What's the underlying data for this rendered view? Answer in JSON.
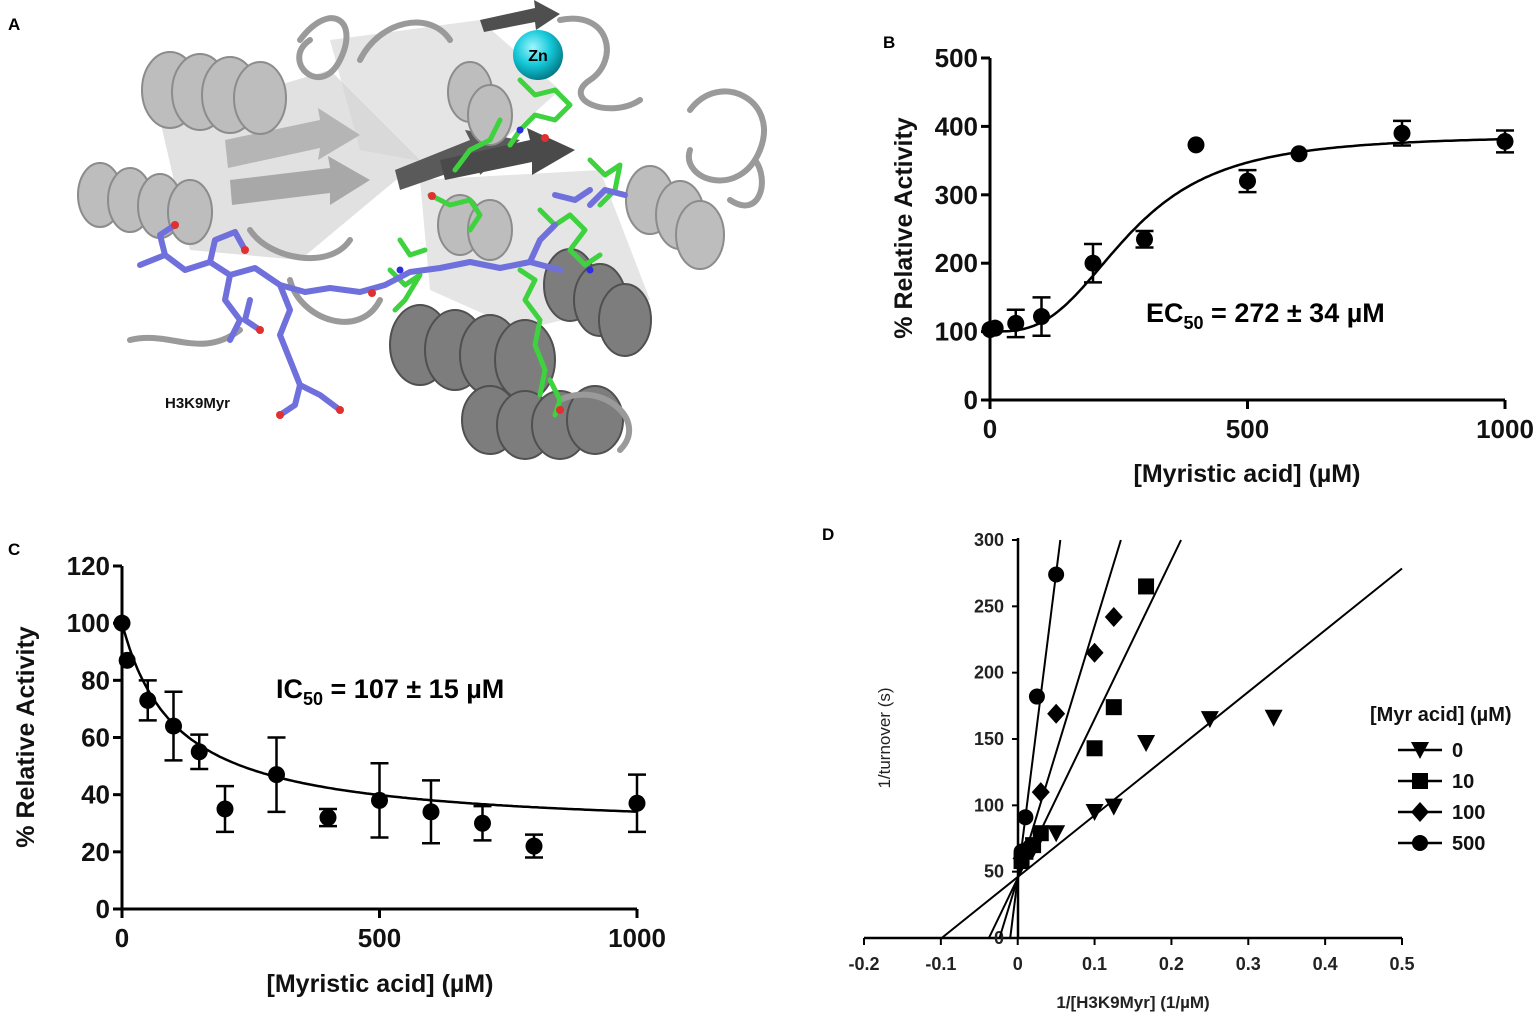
{
  "panels": {
    "A": {
      "letter": "A",
      "zn_label": "Zn",
      "peptide_label": "H3K9Myr"
    },
    "B": {
      "letter": "B"
    },
    "C": {
      "letter": "C"
    },
    "D": {
      "letter": "D"
    }
  },
  "chart_data": [
    {
      "panel": "B",
      "type": "scatter",
      "title": "",
      "xlabel": "[Myristic acid] (µM)",
      "ylabel": "% Relative Activity",
      "xlim": [
        0,
        1000
      ],
      "ylim": [
        0,
        500
      ],
      "xticks": [
        0,
        500,
        1000
      ],
      "yticks": [
        0,
        100,
        200,
        300,
        400,
        500
      ],
      "annotation": {
        "main": "EC",
        "sub": "50",
        "rest": " = 272 ± 34 µM"
      },
      "series": [
        {
          "x": [
            0,
            10,
            50,
            100,
            200,
            300,
            400,
            500,
            600,
            800,
            1000
          ],
          "y": [
            103,
            105,
            112,
            122,
            200,
            235,
            373,
            320,
            360,
            390,
            378
          ],
          "err": [
            0,
            0,
            20,
            28,
            28,
            12,
            0,
            16,
            0,
            18,
            16
          ]
        }
      ],
      "fit": {
        "model": "sigmoid",
        "bottom": 100,
        "top": 387,
        "ec50": 272,
        "hill": 3.0
      }
    },
    {
      "panel": "C",
      "type": "scatter",
      "title": "",
      "xlabel": "[Myristic acid] (µM)",
      "ylabel": "% Relative Activity",
      "xlim": [
        0,
        1000
      ],
      "ylim": [
        0,
        120
      ],
      "xticks": [
        0,
        500,
        1000
      ],
      "yticks": [
        0,
        20,
        40,
        60,
        80,
        100,
        120
      ],
      "annotation": {
        "main": "IC",
        "sub": "50",
        "rest": " = 107 ± 15 µM"
      },
      "series": [
        {
          "x": [
            0,
            10,
            50,
            100,
            150,
            200,
            300,
            400,
            500,
            600,
            700,
            800,
            1000
          ],
          "y": [
            100,
            87,
            73,
            64,
            55,
            35,
            47,
            32,
            38,
            34,
            30,
            22,
            37
          ],
          "err": [
            0,
            0,
            7,
            12,
            6,
            8,
            13,
            3,
            13,
            11,
            6,
            4,
            10
          ]
        }
      ],
      "fit": {
        "model": "decay",
        "bottom": 27,
        "top": 100,
        "ic50": 107
      }
    },
    {
      "panel": "D",
      "type": "line",
      "title": "",
      "xlabel": "1/[H3K9Myr] (1/µM)",
      "ylabel": "1/turnover (s)",
      "xlim": [
        -0.2,
        0.5
      ],
      "ylim": [
        0,
        300
      ],
      "xticks": [
        -0.2,
        -0.1,
        0,
        0.1,
        0.2,
        0.3,
        0.4,
        0.5
      ],
      "yticks": [
        0,
        50,
        100,
        150,
        200,
        250,
        300
      ],
      "legend": {
        "title": "[Myr acid] (µM)",
        "position": "right"
      },
      "series": [
        {
          "name": "0",
          "marker": "triangle-down",
          "x": [
            0.01,
            0.02,
            0.05,
            0.1,
            0.125,
            0.167,
            0.25,
            0.333
          ],
          "y": [
            62,
            67,
            79,
            95,
            99,
            147,
            165,
            166
          ],
          "fit_slope": 465,
          "fit_intercept": 46
        },
        {
          "name": "10",
          "marker": "square",
          "x": [
            0.005,
            0.01,
            0.02,
            0.03,
            0.1,
            0.125,
            0.167
          ],
          "y": [
            58,
            65,
            70,
            79,
            143,
            174,
            265
          ],
          "fit_slope": 1200,
          "fit_intercept": 45
        },
        {
          "name": "100",
          "marker": "diamond",
          "x": [
            0.005,
            0.01,
            0.03,
            0.05,
            0.1,
            0.125
          ],
          "y": [
            60,
            66,
            110,
            169,
            215,
            242
          ],
          "fit_slope": 1900,
          "fit_intercept": 45
        },
        {
          "name": "500",
          "marker": "circle",
          "x": [
            0.005,
            0.01,
            0.025,
            0.05
          ],
          "y": [
            65,
            91,
            182,
            274
          ],
          "fit_slope": 4600,
          "fit_intercept": 45
        }
      ]
    }
  ]
}
